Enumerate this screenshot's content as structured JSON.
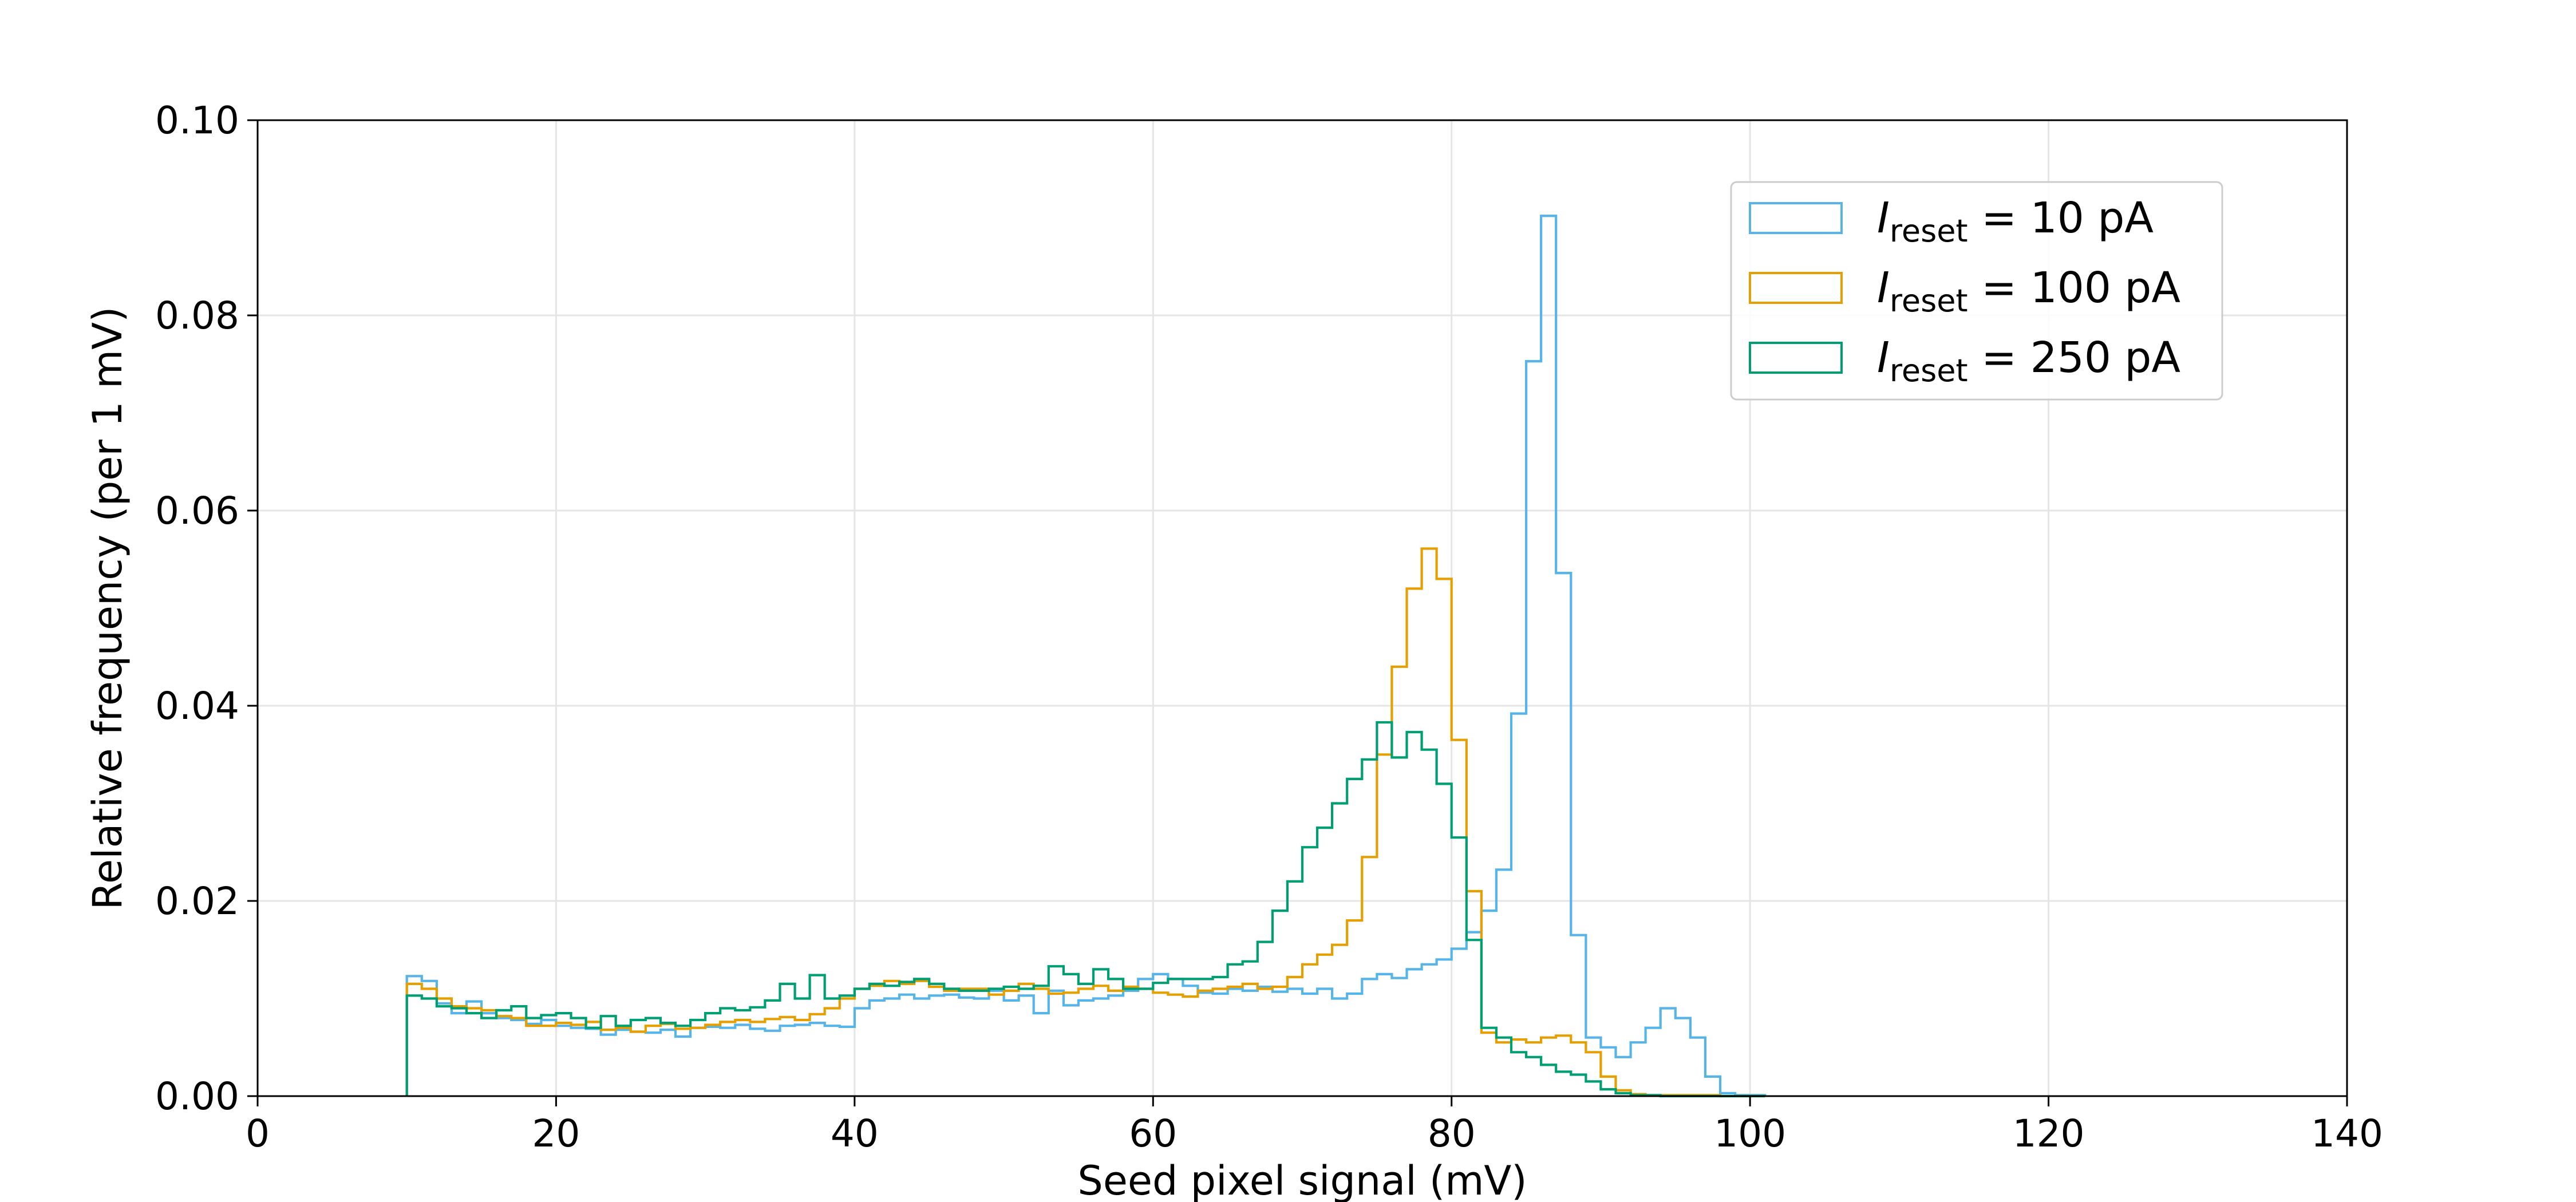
{
  "chart_data": {
    "type": "step",
    "title": "",
    "xlabel": "Seed pixel signal (mV)",
    "ylabel": "Relative frequency (per 1 mV)",
    "xlim": [
      0,
      140
    ],
    "ylim": [
      0,
      0.1
    ],
    "x_ticks": [
      0,
      20,
      40,
      60,
      80,
      100,
      120,
      140
    ],
    "x_tick_labels": [
      "0",
      "20",
      "40",
      "60",
      "80",
      "100",
      "120",
      "140"
    ],
    "y_ticks": [
      0,
      0.02,
      0.04,
      0.06,
      0.08,
      0.1
    ],
    "y_tick_labels": [
      "0.00",
      "0.02",
      "0.04",
      "0.06",
      "0.08",
      "0.10"
    ],
    "grid": true,
    "legend_position": "top-right",
    "x": [
      10,
      11,
      12,
      13,
      14,
      15,
      16,
      17,
      18,
      19,
      20,
      21,
      22,
      23,
      24,
      25,
      26,
      27,
      28,
      29,
      30,
      31,
      32,
      33,
      34,
      35,
      36,
      37,
      38,
      39,
      40,
      41,
      42,
      43,
      44,
      45,
      46,
      47,
      48,
      49,
      50,
      51,
      52,
      53,
      54,
      55,
      56,
      57,
      58,
      59,
      60,
      61,
      62,
      63,
      64,
      65,
      66,
      67,
      68,
      69,
      70,
      71,
      72,
      73,
      74,
      75,
      76,
      77,
      78,
      79,
      80,
      81,
      82,
      83,
      84,
      85,
      86,
      87,
      88,
      89,
      90,
      91,
      92,
      93,
      94,
      95,
      96,
      97,
      98,
      99,
      100
    ],
    "series": [
      {
        "legend_main": "I",
        "legend_sub": "reset",
        "legend_rest": " = 10 pA",
        "color": "#56b4e9",
        "values": [
          0.0123,
          0.0118,
          0.0095,
          0.0085,
          0.0097,
          0.0085,
          0.008,
          0.0078,
          0.0074,
          0.0078,
          0.0072,
          0.007,
          0.0069,
          0.0063,
          0.0068,
          0.0066,
          0.0065,
          0.0068,
          0.0061,
          0.007,
          0.0071,
          0.007,
          0.0073,
          0.0069,
          0.0067,
          0.0072,
          0.0073,
          0.0075,
          0.0072,
          0.0071,
          0.009,
          0.0098,
          0.01,
          0.0104,
          0.01,
          0.0103,
          0.0104,
          0.0101,
          0.01,
          0.0108,
          0.0098,
          0.0103,
          0.0085,
          0.0108,
          0.0093,
          0.0098,
          0.01,
          0.0103,
          0.0108,
          0.012,
          0.0125,
          0.012,
          0.0113,
          0.0106,
          0.0105,
          0.011,
          0.0108,
          0.0112,
          0.0107,
          0.011,
          0.0105,
          0.011,
          0.01,
          0.0105,
          0.012,
          0.0125,
          0.0121,
          0.013,
          0.0135,
          0.014,
          0.0151,
          0.0168,
          0.019,
          0.0232,
          0.0392,
          0.0753,
          0.0902,
          0.0536,
          0.0165,
          0.006,
          0.005,
          0.004,
          0.0055,
          0.007,
          0.009,
          0.008,
          0.006,
          0.002,
          0.0003,
          0.0001,
          0.0001
        ]
      },
      {
        "legend_main": "I",
        "legend_sub": "reset",
        "legend_rest": " = 100 pA",
        "color": "#e69f00",
        "values": [
          0.0115,
          0.011,
          0.01,
          0.0092,
          0.009,
          0.0088,
          0.0082,
          0.008,
          0.0072,
          0.0072,
          0.0075,
          0.0073,
          0.0076,
          0.0068,
          0.007,
          0.0066,
          0.0072,
          0.0074,
          0.0069,
          0.007,
          0.0073,
          0.0076,
          0.0078,
          0.0076,
          0.0079,
          0.0081,
          0.0078,
          0.0084,
          0.009,
          0.01,
          0.011,
          0.0113,
          0.0118,
          0.0115,
          0.0118,
          0.0112,
          0.0108,
          0.011,
          0.011,
          0.0104,
          0.0108,
          0.0115,
          0.011,
          0.0105,
          0.0106,
          0.011,
          0.0113,
          0.0108,
          0.0112,
          0.011,
          0.0106,
          0.0104,
          0.0102,
          0.0108,
          0.011,
          0.0112,
          0.0115,
          0.011,
          0.0112,
          0.0122,
          0.0135,
          0.0145,
          0.0155,
          0.018,
          0.0245,
          0.035,
          0.044,
          0.052,
          0.0561,
          0.053,
          0.0365,
          0.021,
          0.0065,
          0.0055,
          0.0058,
          0.0055,
          0.006,
          0.0062,
          0.0055,
          0.0045,
          0.002,
          0.0006,
          0.0002,
          0.0001,
          0.0001,
          0.0001,
          0.0001,
          0.0001,
          0.0,
          0.0,
          0.0
        ]
      },
      {
        "legend_main": "I",
        "legend_sub": "reset",
        "legend_rest": " = 250 pA",
        "color": "#009e73",
        "values": [
          0.0103,
          0.01,
          0.0092,
          0.009,
          0.0085,
          0.008,
          0.0088,
          0.0092,
          0.008,
          0.0083,
          0.0085,
          0.008,
          0.007,
          0.0082,
          0.0072,
          0.0078,
          0.008,
          0.0075,
          0.0072,
          0.0078,
          0.0085,
          0.009,
          0.0088,
          0.0091,
          0.0098,
          0.0115,
          0.01,
          0.0124,
          0.01,
          0.0103,
          0.011,
          0.0115,
          0.0113,
          0.0117,
          0.012,
          0.0115,
          0.011,
          0.0108,
          0.0108,
          0.011,
          0.0112,
          0.011,
          0.0113,
          0.0133,
          0.0125,
          0.0115,
          0.013,
          0.012,
          0.011,
          0.011,
          0.0116,
          0.012,
          0.012,
          0.012,
          0.0122,
          0.0135,
          0.0138,
          0.0158,
          0.019,
          0.022,
          0.0255,
          0.0275,
          0.03,
          0.0325,
          0.0345,
          0.0383,
          0.0347,
          0.0373,
          0.0355,
          0.032,
          0.0265,
          0.016,
          0.007,
          0.006,
          0.0045,
          0.004,
          0.0032,
          0.0025,
          0.0022,
          0.0015,
          0.0007,
          0.0003,
          0.0001,
          0.0001,
          0.0,
          0.0,
          0.0,
          0.0,
          0.0,
          0.0,
          0.0
        ]
      }
    ]
  }
}
